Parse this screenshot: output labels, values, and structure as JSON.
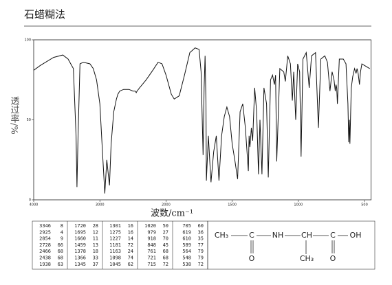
{
  "chart_data": {
    "type": "line",
    "title": "石蜡糊法",
    "x_label": "波数/cm⁻¹",
    "y_label": "透过率/%",
    "xlim": [
      4000,
      450
    ],
    "xticks": [
      4000,
      3000,
      2000,
      1500,
      1000,
      500
    ],
    "ylim": [
      0,
      100
    ],
    "yticks": [
      0,
      50,
      100
    ],
    "series": [
      {
        "color": "#111111",
        "x": [
          4000,
          3900,
          3700,
          3560,
          3480,
          3400,
          3360,
          3346,
          3330,
          3300,
          3250,
          3150,
          3100,
          3050,
          3000,
          2960,
          2925,
          2895,
          2870,
          2854,
          2830,
          2790,
          2750,
          2728,
          2700,
          2640,
          2560,
          2500,
          2466,
          2450,
          2438,
          2400,
          2300,
          2200,
          2120,
          2060,
          2000,
          1960,
          1938,
          1900,
          1860,
          1820,
          1780,
          1750,
          1735,
          1720,
          1712,
          1705,
          1698,
          1695,
          1680,
          1670,
          1660,
          1640,
          1620,
          1600,
          1580,
          1560,
          1540,
          1520,
          1500,
          1480,
          1459,
          1440,
          1420,
          1400,
          1378,
          1372,
          1366,
          1355,
          1345,
          1330,
          1315,
          1301,
          1290,
          1275,
          1260,
          1240,
          1227,
          1210,
          1195,
          1181,
          1172,
          1163,
          1140,
          1110,
          1098,
          1080,
          1060,
          1045,
          1035,
          1020,
          1005,
          990,
          979,
          965,
          940,
          918,
          900,
          870,
          848,
          830,
          800,
          780,
          761,
          745,
          730,
          721,
          715,
          710,
          705,
          690,
          660,
          640,
          625,
          619,
          614,
          610,
          600,
          589,
          575,
          564,
          556,
          548,
          542,
          538,
          530,
          520,
          500,
          460
        ],
        "values": [
          81,
          84,
          89,
          90.5,
          88,
          82,
          40,
          8,
          40,
          85,
          86,
          85,
          82,
          75,
          60,
          30,
          4,
          25,
          15,
          9,
          35,
          55,
          63,
          66,
          68,
          69,
          69,
          68,
          68,
          67,
          68,
          70,
          75,
          81,
          86,
          85,
          78,
          66,
          63,
          65,
          78,
          92,
          95,
          94,
          80,
          28,
          70,
          90,
          60,
          12,
          40,
          25,
          11,
          30,
          40,
          12,
          40,
          52,
          58,
          52,
          35,
          25,
          13,
          55,
          60,
          45,
          18,
          40,
          33,
          45,
          37,
          70,
          55,
          16,
          50,
          16,
          70,
          60,
          14,
          75,
          78,
          72,
          78,
          24,
          82,
          80,
          74,
          90,
          85,
          62,
          80,
          50,
          85,
          80,
          27,
          88,
          92,
          70,
          90,
          92,
          45,
          88,
          90,
          86,
          68,
          80,
          75,
          68,
          72,
          70,
          60,
          88,
          88,
          85,
          60,
          36,
          50,
          35,
          70,
          77,
          82,
          79,
          82,
          79,
          75,
          72,
          80,
          85,
          84,
          82
        ]
      }
    ]
  },
  "peak_table": [
    [
      [
        3346,
        8
      ],
      [
        2925,
        4
      ],
      [
        2854,
        9
      ],
      [
        2728,
        66
      ],
      [
        2466,
        68
      ],
      [
        2438,
        68
      ],
      [
        1938,
        63
      ]
    ],
    [
      [
        1720,
        28
      ],
      [
        1695,
        12
      ],
      [
        1660,
        11
      ],
      [
        1459,
        13
      ],
      [
        1378,
        18
      ],
      [
        1366,
        33
      ],
      [
        1345,
        37
      ]
    ],
    [
      [
        1301,
        16
      ],
      [
        1275,
        16
      ],
      [
        1227,
        14
      ],
      [
        1181,
        72
      ],
      [
        1163,
        24
      ],
      [
        1098,
        74
      ],
      [
        1045,
        62
      ]
    ],
    [
      [
        1020,
        50
      ],
      [
        979,
        27
      ],
      [
        918,
        70
      ],
      [
        848,
        45
      ],
      [
        761,
        68
      ],
      [
        721,
        68
      ],
      [
        715,
        72
      ]
    ],
    [
      [
        705,
        60
      ],
      [
        619,
        36
      ],
      [
        610,
        35
      ],
      [
        589,
        77
      ],
      [
        564,
        79
      ],
      [
        548,
        79
      ],
      [
        538,
        72
      ]
    ]
  ],
  "structure": {
    "atoms": [
      "CH₃",
      "C",
      "NH",
      "CH",
      "C",
      "OH",
      "O",
      "CH₃",
      "O"
    ]
  }
}
